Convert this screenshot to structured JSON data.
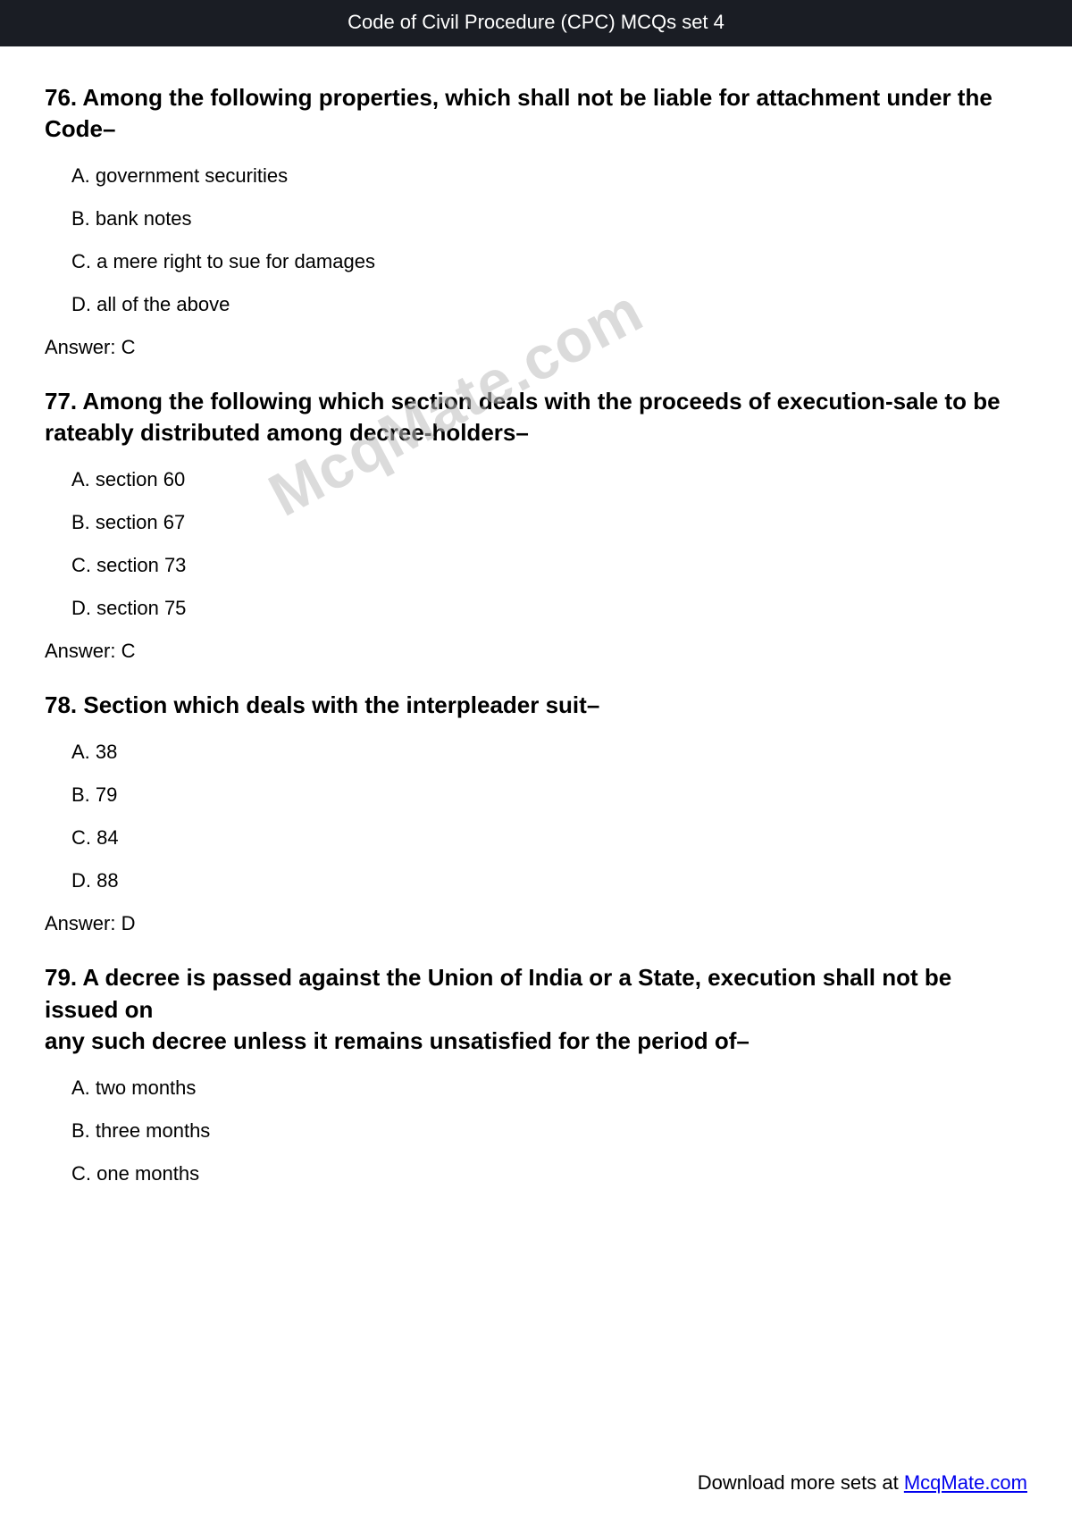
{
  "header": {
    "title": "Code of Civil Procedure (CPC) MCQs set 4"
  },
  "watermark": {
    "text": "McqMate.com"
  },
  "footer": {
    "prefix": "Download more sets at ",
    "link_text": "McqMate.com"
  },
  "colors": {
    "header_bg": "#1a1d24",
    "header_text": "#ffffff",
    "body_bg": "#ffffff",
    "body_text": "#000000",
    "watermark": "#bfbfbf",
    "link": "#0000ee"
  },
  "questions": [
    {
      "number": "76.",
      "text": "Among the following properties, which shall not be liable for attachment under the\nCode–",
      "options": [
        {
          "label": "A.",
          "text": "government securities"
        },
        {
          "label": "B.",
          "text": "bank notes"
        },
        {
          "label": "C.",
          "text": "a mere right to sue for damages"
        },
        {
          "label": "D.",
          "text": "all of the above"
        }
      ],
      "answer_prefix": "Answer:",
      "answer": "C"
    },
    {
      "number": "77.",
      "text": "Among the following which section deals with the proceeds of execution-sale to be\nrateably distributed among decree-holders–",
      "options": [
        {
          "label": "A.",
          "text": "section 60"
        },
        {
          "label": "B.",
          "text": "section 67"
        },
        {
          "label": "C.",
          "text": "section 73"
        },
        {
          "label": "D.",
          "text": "section 75"
        }
      ],
      "answer_prefix": "Answer:",
      "answer": "C"
    },
    {
      "number": "78.",
      "text": "Section which deals with the interpleader suit–",
      "options": [
        {
          "label": "A.",
          "text": "38"
        },
        {
          "label": "B.",
          "text": "79"
        },
        {
          "label": "C.",
          "text": "84"
        },
        {
          "label": "D.",
          "text": "88"
        }
      ],
      "answer_prefix": "Answer:",
      "answer": "D"
    },
    {
      "number": "79.",
      "text": "A decree is passed against the Union of India or a State, execution shall not be issued on\nany such decree unless it remains unsatisfied for the period of–",
      "options": [
        {
          "label": "A.",
          "text": "two months"
        },
        {
          "label": "B.",
          "text": "three months"
        },
        {
          "label": "C.",
          "text": "one months"
        }
      ],
      "answer_prefix": "",
      "answer": ""
    }
  ]
}
